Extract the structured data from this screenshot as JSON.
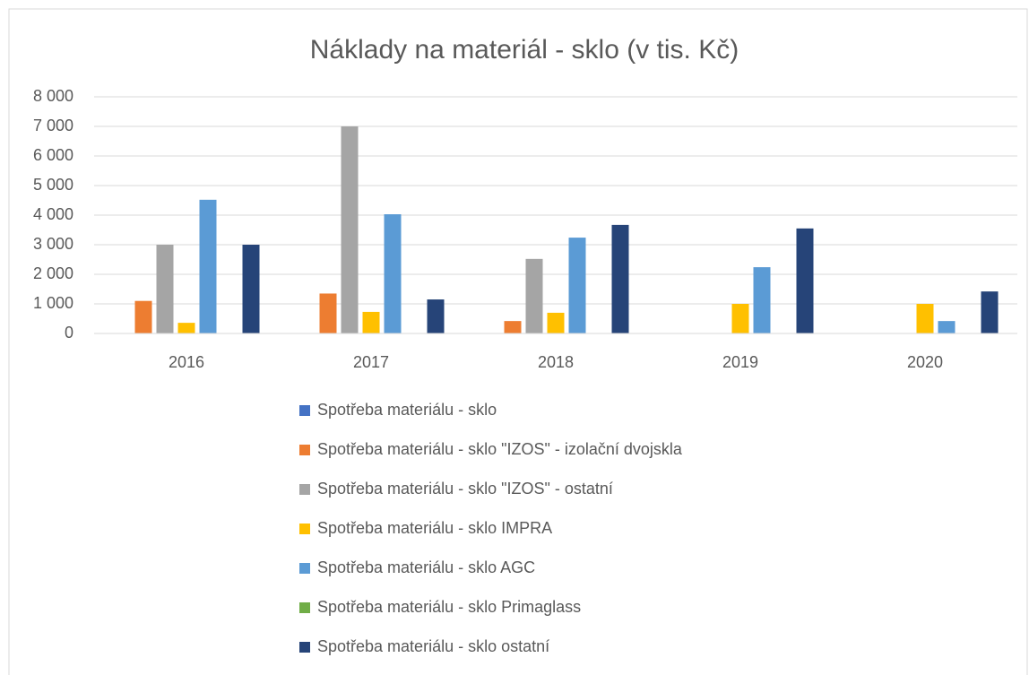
{
  "chart_data": {
    "type": "bar",
    "title": "Náklady na materiál - sklo (v tis. Kč)",
    "categories": [
      "2016",
      "2017",
      "2018",
      "2019",
      "2020"
    ],
    "series": [
      {
        "name": "Spotřeba materiálu - sklo",
        "color": "#4472c4",
        "values": [
          0,
          0,
          0,
          0,
          0
        ]
      },
      {
        "name": "Spotřeba materiálu - sklo \"IZOS\" - izolační dvojskla",
        "color": "#ed7d31",
        "values": [
          1100,
          1350,
          420,
          0,
          0
        ]
      },
      {
        "name": "Spotřeba materiálu - sklo \"IZOS\" - ostatní",
        "color": "#a5a5a5",
        "values": [
          3000,
          7000,
          2520,
          0,
          0
        ]
      },
      {
        "name": "Spotřeba materiálu - sklo IMPRA",
        "color": "#ffc000",
        "values": [
          360,
          730,
          700,
          1000,
          1000
        ]
      },
      {
        "name": "Spotřeba materiálu - sklo AGC",
        "color": "#5b9bd5",
        "values": [
          4520,
          4030,
          3240,
          2240,
          420
        ]
      },
      {
        "name": "Spotřeba materiálu - sklo Primaglass",
        "color": "#70ad47",
        "values": [
          0,
          0,
          0,
          0,
          0
        ]
      },
      {
        "name": "Spotřeba materiálu - sklo ostatní",
        "color": "#264478",
        "values": [
          3000,
          1150,
          3670,
          3550,
          1420
        ]
      }
    ],
    "ylim": [
      0,
      8000
    ],
    "yticks": [
      0,
      {
        "value": 1000,
        "label": "1 000"
      },
      {
        "value": 2000,
        "label": "2 000"
      },
      {
        "value": 3000,
        "label": "3 000"
      },
      {
        "value": 4000,
        "label": "4 000"
      },
      {
        "value": 5000,
        "label": "5 000"
      },
      {
        "value": 6000,
        "label": "6 000"
      },
      {
        "value": 7000,
        "label": "7 000"
      },
      {
        "value": 8000,
        "label": "8 000"
      }
    ],
    "grid": true
  }
}
